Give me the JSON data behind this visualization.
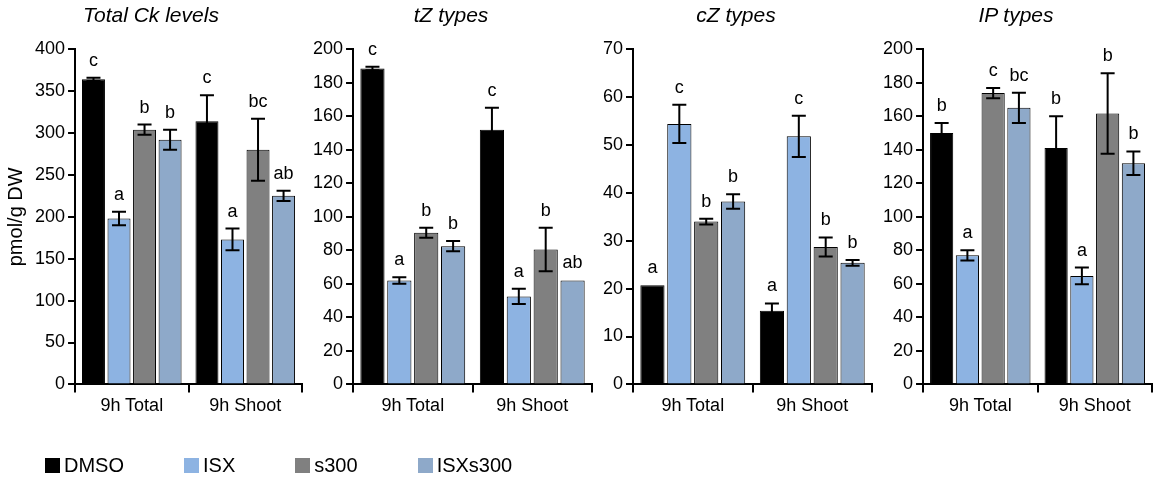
{
  "chart_data": [
    {
      "type": "bar",
      "title": "Total Ck levels",
      "ylabel": "pmol/g DW",
      "categories": [
        "9h Total",
        "9h Shoot"
      ],
      "ylim": [
        0,
        400
      ],
      "yticks": [
        0,
        50,
        100,
        150,
        200,
        250,
        300,
        350,
        400
      ],
      "grid": false,
      "legend": "bottom",
      "series": [
        {
          "name": "DMSO",
          "color": "#000000",
          "values": [
            364,
            314
          ],
          "errors": [
            2,
            31
          ],
          "value_labels": [
            "c",
            "c"
          ]
        },
        {
          "name": "ISX",
          "color": "#8db3e2",
          "values": [
            198,
            173
          ],
          "errors": [
            8,
            13
          ],
          "value_labels": [
            "a",
            "a"
          ]
        },
        {
          "name": "s300",
          "color": "#808080",
          "values": [
            304,
            280
          ],
          "errors": [
            6,
            37
          ],
          "value_labels": [
            "b",
            "bc"
          ]
        },
        {
          "name": "ISXs300",
          "color": "#8ea9c9",
          "values": [
            292,
            225
          ],
          "errors": [
            12,
            6
          ],
          "value_labels": [
            "b",
            "ab"
          ]
        }
      ]
    },
    {
      "type": "bar",
      "title": "tZ types",
      "categories": [
        "9h Total",
        "9h Shoot"
      ],
      "ylim": [
        0,
        200
      ],
      "yticks": [
        0,
        20,
        40,
        60,
        80,
        100,
        120,
        140,
        160,
        180,
        200
      ],
      "grid": false,
      "series": [
        {
          "color": "#000000",
          "values": [
            188.5,
            152
          ],
          "errors": [
            1,
            13
          ],
          "value_labels": [
            "c",
            "c"
          ]
        },
        {
          "color": "#8db3e2",
          "values": [
            62,
            52.5
          ],
          "errors": [
            2,
            4.5
          ],
          "value_labels": [
            "a",
            "a"
          ]
        },
        {
          "color": "#808080",
          "values": [
            90.5,
            80.5
          ],
          "errors": [
            3,
            13
          ],
          "value_labels": [
            "b",
            "b"
          ]
        },
        {
          "color": "#8ea9c9",
          "values": [
            82.5,
            62
          ],
          "errors": [
            3,
            null
          ],
          "value_labels": [
            "b",
            "ab"
          ]
        }
      ]
    },
    {
      "type": "bar",
      "title": "cZ types",
      "categories": [
        "9h Total",
        "9h Shoot"
      ],
      "ylim": [
        0,
        70
      ],
      "yticks": [
        0,
        10,
        20,
        30,
        40,
        50,
        60,
        70
      ],
      "grid": false,
      "series": [
        {
          "color": "#000000",
          "values": [
            20.7,
            15.4
          ],
          "errors": [
            null,
            1.5
          ],
          "value_labels": [
            "a",
            "a"
          ]
        },
        {
          "color": "#8db3e2",
          "values": [
            54.4,
            51.8
          ],
          "errors": [
            4,
            4.3
          ],
          "value_labels": [
            "c",
            "c"
          ]
        },
        {
          "color": "#808080",
          "values": [
            34,
            28.7
          ],
          "errors": [
            0.6,
            2
          ],
          "value_labels": [
            "b",
            "b"
          ]
        },
        {
          "color": "#8ea9c9",
          "values": [
            38.2,
            25.4
          ],
          "errors": [
            1.5,
            0.6
          ],
          "value_labels": [
            "b",
            "b"
          ]
        }
      ]
    },
    {
      "type": "bar",
      "title": "IP types",
      "categories": [
        "9h Total",
        "9h Shoot"
      ],
      "ylim": [
        0,
        200
      ],
      "yticks": [
        0,
        20,
        40,
        60,
        80,
        100,
        120,
        140,
        160,
        180,
        200
      ],
      "grid": false,
      "series": [
        {
          "color": "#000000",
          "values": [
            150,
            141
          ],
          "errors": [
            6,
            19
          ],
          "value_labels": [
            "b",
            "b"
          ]
        },
        {
          "color": "#8db3e2",
          "values": [
            77,
            64.7
          ],
          "errors": [
            3,
            5
          ],
          "value_labels": [
            "a",
            "a"
          ]
        },
        {
          "color": "#808080",
          "values": [
            173.8,
            161.6
          ],
          "errors": [
            3,
            24
          ],
          "value_labels": [
            "c",
            "b"
          ]
        },
        {
          "color": "#8ea9c9",
          "values": [
            165,
            132
          ],
          "errors": [
            9,
            7
          ],
          "value_labels": [
            "bc",
            "b"
          ]
        }
      ]
    }
  ]
}
